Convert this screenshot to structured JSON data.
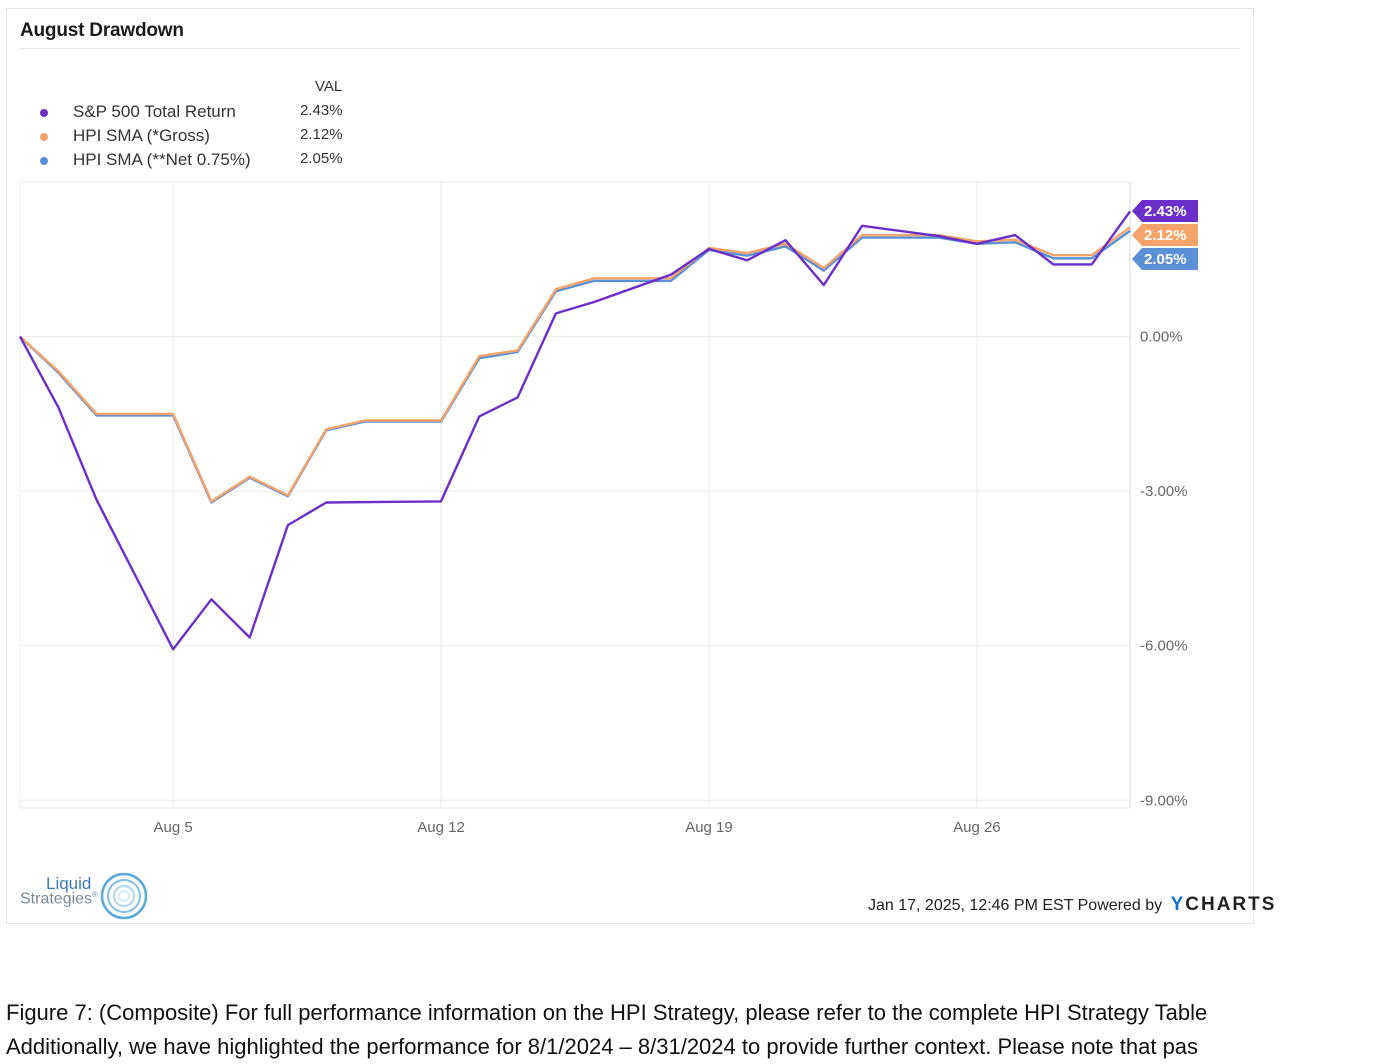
{
  "title": "August Drawdown",
  "legend": {
    "header": "VAL",
    "items": [
      {
        "name": "S&P 500 Total Return",
        "value": "2.43%",
        "color": "#6a2fc9"
      },
      {
        "name": "HPI SMA (*Gross)",
        "value": "2.12%",
        "color": "#f4a36b"
      },
      {
        "name": "HPI SMA (**Net 0.75%)",
        "value": "2.05%",
        "color": "#5b8fd6"
      }
    ]
  },
  "chart_data": {
    "type": "line",
    "title": "August Drawdown",
    "x": [
      "2024-08-01",
      "2024-08-02",
      "2024-08-03",
      "2024-08-05",
      "2024-08-06",
      "2024-08-07",
      "2024-08-08",
      "2024-08-09",
      "2024-08-12",
      "2024-08-13",
      "2024-08-14",
      "2024-08-15",
      "2024-08-16",
      "2024-08-19",
      "2024-08-20",
      "2024-08-21",
      "2024-08-22",
      "2024-08-23",
      "2024-08-26",
      "2024-08-27",
      "2024-08-28",
      "2024-08-29",
      "2024-08-30"
    ],
    "x_ticks": [
      "Aug 5",
      "Aug 12",
      "Aug 19",
      "Aug 26"
    ],
    "y_ticks": [
      "0.00%",
      "-3.00%",
      "-6.00%",
      "-9.00%"
    ],
    "ylim": [
      -9.15,
      3.0
    ],
    "y_unit": "%",
    "grid": true,
    "legend_position": "top-left",
    "series": [
      {
        "name": "S&P 500 Total Return",
        "color": "#6a2fc9",
        "end_label": "2.43%",
        "points": [
          [
            "2024-08-01",
            0.0
          ],
          [
            "2024-08-02",
            -1.37
          ],
          [
            "2024-08-03",
            -3.17
          ],
          [
            "2024-08-05",
            -6.07
          ],
          [
            "2024-08-06",
            -5.1
          ],
          [
            "2024-08-07",
            -5.84
          ],
          [
            "2024-08-08",
            -3.66
          ],
          [
            "2024-08-09",
            -3.22
          ],
          [
            "2024-08-12",
            -3.2
          ],
          [
            "2024-08-13",
            -1.55
          ],
          [
            "2024-08-14",
            -1.18
          ],
          [
            "2024-08-15",
            0.45
          ],
          [
            "2024-08-16",
            0.67
          ],
          [
            "2024-08-18",
            1.2
          ],
          [
            "2024-08-19",
            1.7
          ],
          [
            "2024-08-20",
            1.48
          ],
          [
            "2024-08-21",
            1.87
          ],
          [
            "2024-08-22",
            1.0
          ],
          [
            "2024-08-23",
            2.15
          ],
          [
            "2024-08-25",
            1.95
          ],
          [
            "2024-08-26",
            1.8
          ],
          [
            "2024-08-27",
            1.97
          ],
          [
            "2024-08-28",
            1.4
          ],
          [
            "2024-08-29",
            1.4
          ],
          [
            "2024-08-30",
            2.43
          ]
        ]
      },
      {
        "name": "HPI SMA (*Gross)",
        "color": "#f4a36b",
        "end_label": "2.12%",
        "points": [
          [
            "2024-08-01",
            0.0
          ],
          [
            "2024-08-02",
            -0.67
          ],
          [
            "2024-08-03",
            -1.5
          ],
          [
            "2024-08-05",
            -1.5
          ],
          [
            "2024-08-06",
            -3.2
          ],
          [
            "2024-08-07",
            -2.72
          ],
          [
            "2024-08-08",
            -3.08
          ],
          [
            "2024-08-09",
            -1.8
          ],
          [
            "2024-08-10",
            -1.63
          ],
          [
            "2024-08-12",
            -1.63
          ],
          [
            "2024-08-13",
            -0.38
          ],
          [
            "2024-08-14",
            -0.27
          ],
          [
            "2024-08-15",
            0.92
          ],
          [
            "2024-08-16",
            1.13
          ],
          [
            "2024-08-18",
            1.13
          ],
          [
            "2024-08-19",
            1.72
          ],
          [
            "2024-08-20",
            1.62
          ],
          [
            "2024-08-21",
            1.8
          ],
          [
            "2024-08-22",
            1.33
          ],
          [
            "2024-08-23",
            1.97
          ],
          [
            "2024-08-25",
            1.97
          ],
          [
            "2024-08-26",
            1.85
          ],
          [
            "2024-08-27",
            1.88
          ],
          [
            "2024-08-28",
            1.58
          ],
          [
            "2024-08-29",
            1.58
          ],
          [
            "2024-08-30",
            2.12
          ]
        ]
      },
      {
        "name": "HPI SMA (**Net 0.75%)",
        "color": "#5b8fd6",
        "end_label": "2.05%",
        "points": [
          [
            "2024-08-01",
            0.0
          ],
          [
            "2024-08-02",
            -0.7
          ],
          [
            "2024-08-03",
            -1.53
          ],
          [
            "2024-08-05",
            -1.53
          ],
          [
            "2024-08-06",
            -3.22
          ],
          [
            "2024-08-07",
            -2.74
          ],
          [
            "2024-08-08",
            -3.1
          ],
          [
            "2024-08-09",
            -1.82
          ],
          [
            "2024-08-10",
            -1.65
          ],
          [
            "2024-08-12",
            -1.65
          ],
          [
            "2024-08-13",
            -0.42
          ],
          [
            "2024-08-14",
            -0.3
          ],
          [
            "2024-08-15",
            0.88
          ],
          [
            "2024-08-16",
            1.08
          ],
          [
            "2024-08-18",
            1.08
          ],
          [
            "2024-08-19",
            1.68
          ],
          [
            "2024-08-20",
            1.57
          ],
          [
            "2024-08-21",
            1.75
          ],
          [
            "2024-08-22",
            1.28
          ],
          [
            "2024-08-23",
            1.92
          ],
          [
            "2024-08-25",
            1.92
          ],
          [
            "2024-08-26",
            1.8
          ],
          [
            "2024-08-27",
            1.83
          ],
          [
            "2024-08-28",
            1.52
          ],
          [
            "2024-08-29",
            1.52
          ],
          [
            "2024-08-30",
            2.05
          ]
        ]
      }
    ]
  },
  "logo": {
    "line1": "Liquid",
    "line2": "Strategies",
    "mark": "®"
  },
  "footer": {
    "timestamp": "Jan 17, 2025, 12:46 PM EST Powered by",
    "brand_y": "Y",
    "brand_rest": "CHARTS"
  },
  "caption": {
    "line1": "Figure 7: (Composite) For full performance information on the HPI Strategy, please refer to the complete HPI Strategy Table",
    "line2": "Additionally, we have highlighted the performance for 8/1/2024 – 8/31/2024 to provide further context. Please note that pas"
  }
}
